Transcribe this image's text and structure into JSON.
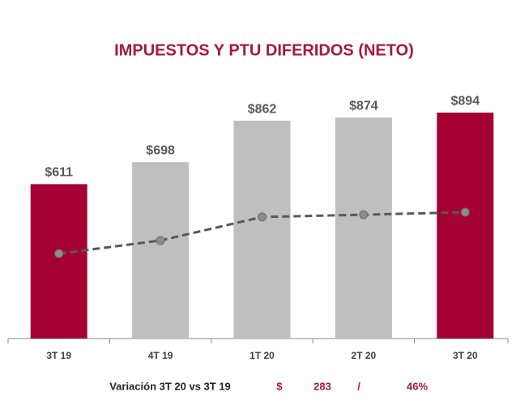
{
  "chart_data": {
    "type": "bar",
    "title": "IMPUESTOS Y PTU DIFERIDOS (NETO)",
    "categories": [
      "3T 19",
      "4T 19",
      "1T 20",
      "2T 20",
      "3T 20"
    ],
    "values": [
      611,
      698,
      862,
      874,
      894
    ],
    "value_labels": [
      "$611",
      "$698",
      "$862",
      "$874",
      "$894"
    ],
    "colors": [
      "#a50034",
      "#bfbfbf",
      "#bfbfbf",
      "#bfbfbf",
      "#a50034"
    ],
    "line": {
      "color": "#595959",
      "values": [
        336,
        388,
        481,
        490,
        500
      ]
    },
    "ylim": [
      0,
      1000
    ],
    "change": {
      "label": "Variación 3T 20 vs 3T 19",
      "currency": "$",
      "amount": 283,
      "separator": "/",
      "percent": "46%"
    }
  }
}
